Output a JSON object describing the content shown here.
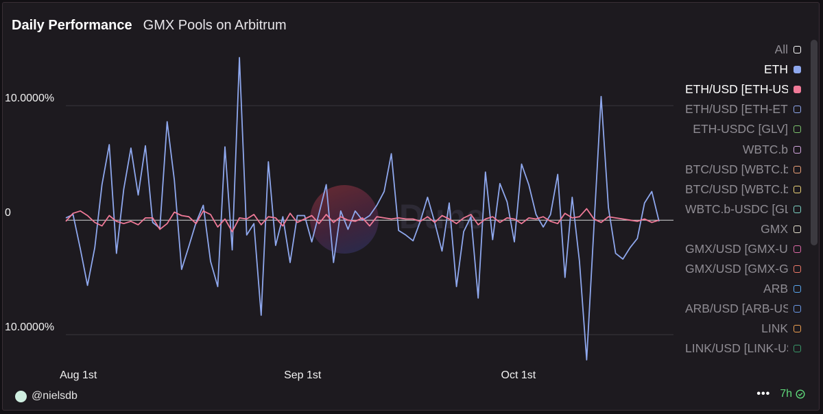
{
  "header": {
    "title": "Daily Performance",
    "subtitle": "GMX Pools on Arbitrum"
  },
  "legend": [
    {
      "label": "All",
      "color": "#ffffff",
      "filled": false,
      "active": false
    },
    {
      "label": "ETH",
      "color": "#8fa8ee",
      "filled": true,
      "active": true
    },
    {
      "label": "ETH/USD [ETH-USDC]",
      "color": "#f07a98",
      "filled": true,
      "active": true
    },
    {
      "label": "ETH/USD [ETH-ETH]",
      "color": "#8fa8ee",
      "filled": false,
      "active": false
    },
    {
      "label": "ETH-USDC [GLV]",
      "color": "#7ec66f",
      "filled": false,
      "active": false
    },
    {
      "label": "WBTC.b",
      "color": "#d7a9e3",
      "filled": false,
      "active": false
    },
    {
      "label": "BTC/USD [WBTC.b-USDC]",
      "color": "#f0a47a",
      "filled": false,
      "active": false
    },
    {
      "label": "BTC/USD [WBTC.b-WBTC.b]",
      "color": "#f0d67a",
      "filled": false,
      "active": false
    },
    {
      "label": "WBTC.b-USDC [GLV]",
      "color": "#7ed6c6",
      "filled": false,
      "active": false
    },
    {
      "label": "GMX",
      "color": "#e8e3d0",
      "filled": false,
      "active": false
    },
    {
      "label": "GMX/USD [GMX-USDC]",
      "color": "#e06aa8",
      "filled": false,
      "active": false
    },
    {
      "label": "GMX/USD [GMX-GMX]",
      "color": "#f07a6a",
      "filled": false,
      "active": false
    },
    {
      "label": "ARB",
      "color": "#5aa8f0",
      "filled": false,
      "active": false
    },
    {
      "label": "ARB/USD [ARB-USDC]",
      "color": "#6a9ae8",
      "filled": false,
      "active": false
    },
    {
      "label": "LINK",
      "color": "#f0a050",
      "filled": false,
      "active": false
    },
    {
      "label": "LINK/USD [LINK-USDC]",
      "color": "#3a9a6a",
      "filled": false,
      "active": false
    }
  ],
  "footer": {
    "user": "@nielsdb",
    "more": "•••",
    "age": "7h"
  },
  "chart_data": {
    "type": "line",
    "ylim": [
      -12.2,
      14.2
    ],
    "y_ticks": [
      {
        "value": 10,
        "label": "10.0000%"
      },
      {
        "value": 0,
        "label": "0"
      },
      {
        "value": -10,
        "label": "10.0000%"
      }
    ],
    "x_ticks": [
      {
        "index": 2,
        "label": "Aug 1st"
      },
      {
        "index": 33,
        "label": "Sep 1st"
      },
      {
        "index": 63,
        "label": "Oct 1st"
      }
    ],
    "n_points": 85,
    "grid": true,
    "legend_position": "right",
    "series": [
      {
        "name": "ETH",
        "color": "#8fa8ee",
        "values": [
          0.2,
          0.5,
          -2.5,
          -5.7,
          -2.4,
          3.1,
          6.6,
          -2.9,
          2.7,
          6.3,
          2.2,
          6.5,
          -0.2,
          -0.7,
          8.6,
          3.5,
          -4.3,
          -2.3,
          -0.2,
          1.3,
          -3.6,
          -5.8,
          6.4,
          -2.6,
          14.2,
          -1.3,
          -0.3,
          -8.3,
          5.1,
          -2.2,
          0.3,
          -3.7,
          0.4,
          0.4,
          -1.9,
          0.6,
          3.1,
          -3.7,
          0.8,
          -0.8,
          0.8,
          0.0,
          0.4,
          1.3,
          2.5,
          5.8,
          -0.9,
          -1.3,
          -1.8,
          -0.1,
          2.0,
          -0.2,
          -2.7,
          1.5,
          -5.8,
          -1.0,
          0.3,
          -6.8,
          4.2,
          -1.7,
          3.2,
          1.6,
          -1.9,
          4.9,
          3.1,
          0.5,
          -0.6,
          0.5,
          4.0,
          -5.0,
          2.0,
          -3.6,
          -12.2,
          -0.6,
          10.8,
          1.1,
          -2.9,
          -3.4,
          -2.4,
          -1.6,
          1.5,
          2.5,
          -0.1,
          null,
          null
        ]
      },
      {
        "name": "ETH/USD [ETH-USDC]",
        "color": "#f07a98",
        "values": [
          -0.1,
          0.6,
          0.8,
          0.4,
          -0.2,
          -0.5,
          0.4,
          -0.1,
          -0.3,
          -0.1,
          -0.4,
          0.2,
          0.2,
          -0.8,
          -0.3,
          0.7,
          0.4,
          0.3,
          -0.3,
          0.8,
          0.5,
          -0.6,
          0.1,
          -1.0,
          0.2,
          0.1,
          0.5,
          -0.4,
          0.3,
          0.2,
          -0.5,
          0.6,
          -0.2,
          0.1,
          0.4,
          -0.3,
          0.5,
          -0.2,
          0.3,
          0.0,
          -0.1,
          0.2,
          -0.5,
          0.3,
          0.2,
          0.1,
          0.2,
          0.1,
          0.1,
          -0.1,
          0.3,
          -0.2,
          0.4,
          0.1,
          -0.3,
          0.2,
          0.5,
          -0.4,
          0.1,
          0.3,
          -0.2,
          0.2,
          0.1,
          -0.3,
          0.2,
          0.1,
          0.3,
          -0.1,
          -0.3,
          0.6,
          0.2,
          0.3,
          1.0,
          0.1,
          -0.2,
          0.3,
          0.2,
          0.1,
          0.0,
          -0.1,
          0.1,
          -0.2,
          0.0,
          null,
          null
        ]
      }
    ]
  }
}
